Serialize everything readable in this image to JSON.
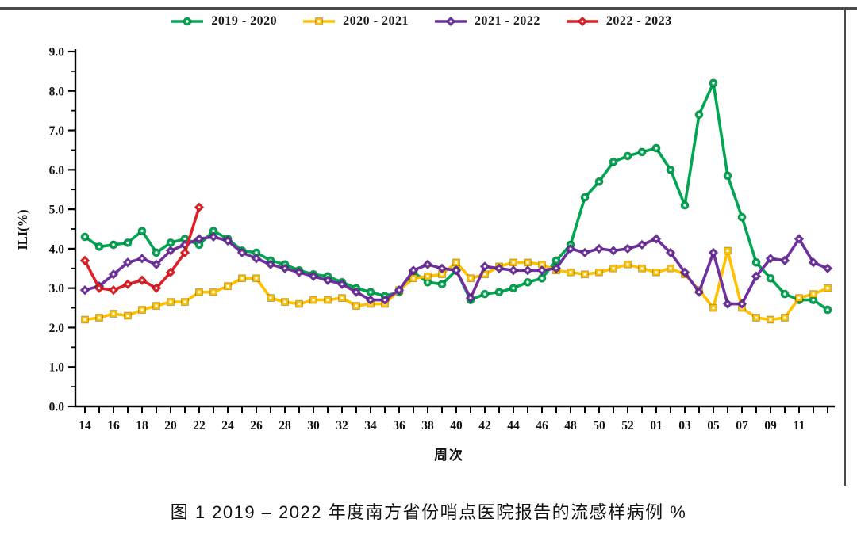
{
  "figure": {
    "caption": "图 1 2019 – 2022 年度南方省份哨点医院报告的流感样病例 %"
  },
  "chart_data": {
    "type": "line",
    "title": "",
    "xlabel": "周次",
    "ylabel": "ILI(%)",
    "ylim": [
      0.0,
      9.0
    ],
    "grid": false,
    "legend_position": "top-center",
    "y_tick_labels": [
      "0.0",
      "1.0",
      "2.0",
      "3.0",
      "4.0",
      "5.0",
      "6.0",
      "7.0",
      "8.0",
      "9.0"
    ],
    "x_tick_labels": [
      "14",
      "16",
      "18",
      "20",
      "22",
      "24",
      "26",
      "28",
      "30",
      "32",
      "34",
      "36",
      "38",
      "40",
      "42",
      "44",
      "46",
      "48",
      "50",
      "52",
      "01",
      "03",
      "05",
      "07",
      "09",
      "11"
    ],
    "x_axis_weeks": [
      "14",
      "15",
      "16",
      "17",
      "18",
      "19",
      "20",
      "21",
      "22",
      "23",
      "24",
      "25",
      "26",
      "27",
      "28",
      "29",
      "30",
      "31",
      "32",
      "33",
      "34",
      "35",
      "36",
      "37",
      "38",
      "39",
      "40",
      "41",
      "42",
      "43",
      "44",
      "45",
      "46",
      "47",
      "48",
      "49",
      "50",
      "51",
      "52",
      "53",
      "01",
      "02",
      "03",
      "04",
      "05",
      "06",
      "07",
      "08",
      "09",
      "10",
      "11",
      "12",
      "13"
    ],
    "series": [
      {
        "name": "2019 - 2020",
        "color": "#00A651",
        "marker": "circle",
        "values": [
          4.3,
          4.05,
          4.1,
          4.15,
          4.45,
          3.9,
          4.15,
          4.25,
          4.1,
          4.45,
          4.25,
          3.95,
          3.9,
          3.7,
          3.6,
          3.45,
          3.35,
          3.3,
          3.15,
          3.0,
          2.9,
          2.8,
          2.9,
          3.4,
          3.15,
          3.1,
          3.45,
          2.7,
          2.85,
          2.9,
          3.0,
          3.15,
          3.25,
          3.7,
          4.1,
          5.3,
          5.7,
          6.2,
          6.35,
          6.45,
          6.55,
          6.0,
          5.1,
          7.4,
          8.2,
          5.85,
          4.8,
          3.65,
          3.25,
          2.85,
          2.7,
          2.7,
          2.45
        ]
      },
      {
        "name": "2020 - 2021",
        "color": "#FFC000",
        "marker": "square",
        "values": [
          2.2,
          2.25,
          2.35,
          2.3,
          2.45,
          2.55,
          2.65,
          2.65,
          2.9,
          2.9,
          3.05,
          3.25,
          3.25,
          2.75,
          2.65,
          2.6,
          2.7,
          2.7,
          2.75,
          2.55,
          2.6,
          2.6,
          2.95,
          3.25,
          3.3,
          3.35,
          3.65,
          3.25,
          3.35,
          3.55,
          3.65,
          3.65,
          3.6,
          3.45,
          3.4,
          3.35,
          3.4,
          3.5,
          3.6,
          3.5,
          3.4,
          3.5,
          3.35,
          2.95,
          2.5,
          3.95,
          2.5,
          2.25,
          2.2,
          2.25,
          2.75,
          2.85,
          3.0
        ]
      },
      {
        "name": "2021 - 2022",
        "color": "#7030A0",
        "marker": "diamond",
        "values": [
          2.95,
          3.05,
          3.35,
          3.65,
          3.75,
          3.6,
          3.95,
          4.1,
          4.25,
          4.3,
          4.2,
          3.9,
          3.75,
          3.6,
          3.5,
          3.4,
          3.3,
          3.2,
          3.1,
          2.9,
          2.7,
          2.7,
          2.95,
          3.45,
          3.6,
          3.5,
          3.45,
          2.75,
          3.55,
          3.5,
          3.45,
          3.45,
          3.45,
          3.5,
          4.0,
          3.9,
          4.0,
          3.95,
          4.0,
          4.1,
          4.25,
          3.9,
          3.4,
          2.9,
          3.9,
          2.6,
          2.6,
          3.3,
          3.75,
          3.7,
          4.25,
          3.65,
          3.5
        ]
      },
      {
        "name": "2022 - 2023",
        "color": "#E31E24",
        "marker": "diamond",
        "values": [
          3.7,
          3.0,
          2.95,
          3.1,
          3.2,
          3.0,
          3.4,
          3.9,
          5.05
        ]
      }
    ]
  }
}
